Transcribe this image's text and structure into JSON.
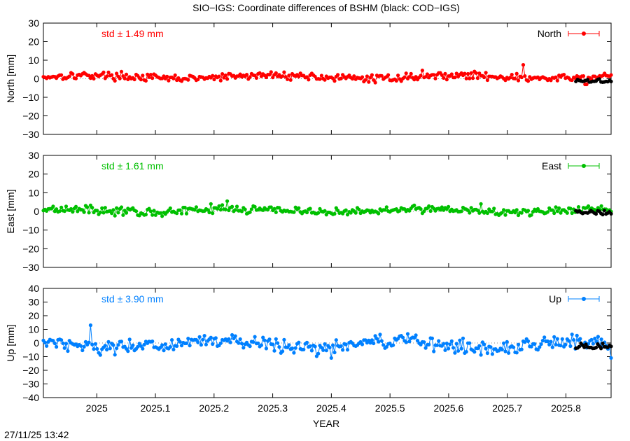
{
  "title": "SIO−IGS: Coordinate differences of BSHM (black: COD−IGS)",
  "timestamp": "27/11/25 13:42",
  "chart_data": {
    "type": "line",
    "xlabel": "YEAR",
    "xlim": [
      2024.909,
      2025.877
    ],
    "x_ticks": [
      {
        "value": 2025.0,
        "label": "2025"
      },
      {
        "value": 2025.1,
        "label": "2025.1"
      },
      {
        "value": 2025.2,
        "label": "2025.2"
      },
      {
        "value": 2025.3,
        "label": "2025.3"
      },
      {
        "value": 2025.4,
        "label": "2025.4"
      },
      {
        "value": 2025.5,
        "label": "2025.5"
      },
      {
        "value": 2025.6,
        "label": "2025.6"
      },
      {
        "value": 2025.7,
        "label": "2025.7"
      },
      {
        "value": 2025.8,
        "label": "2025.8"
      }
    ],
    "comparison_series": {
      "name": "COD−IGS",
      "color": "#000000",
      "x_range": [
        2025.817,
        2025.877
      ]
    },
    "panels": [
      {
        "key": "north",
        "ylabel": "North [mm]",
        "legend": "North",
        "std_label": "std ± 1.49 mm",
        "color": "#ff0000",
        "ylim": [
          -30,
          30
        ],
        "y_ticks": [
          {
            "value": 30,
            "label": "30"
          },
          {
            "value": 20,
            "label": "20"
          },
          {
            "value": 10,
            "label": "10"
          },
          {
            "value": 0,
            "label": "0"
          },
          {
            "value": -10,
            "label": "−10"
          },
          {
            "value": -20,
            "label": "−20"
          },
          {
            "value": -30,
            "label": "−30"
          }
        ],
        "std": 1.49,
        "mean": 1.0,
        "spikes": [
          {
            "x": 2025.728,
            "y": 7.5
          },
          {
            "x": 2025.555,
            "y": 4.5
          },
          {
            "x": 2025.834,
            "y": -3.0
          }
        ],
        "comparison_offset": -1.2
      },
      {
        "key": "east",
        "ylabel": "East [mm]",
        "legend": "East",
        "std_label": "std ± 1.61 mm",
        "color": "#00c000",
        "ylim": [
          -30,
          30
        ],
        "y_ticks": [
          {
            "value": 30,
            "label": "30"
          },
          {
            "value": 20,
            "label": "20"
          },
          {
            "value": 10,
            "label": "10"
          },
          {
            "value": 0,
            "label": "0"
          },
          {
            "value": -10,
            "label": "−10"
          },
          {
            "value": -20,
            "label": "−20"
          },
          {
            "value": -30,
            "label": "−30"
          }
        ],
        "std": 1.61,
        "mean": 0.5,
        "spikes": [
          {
            "x": 2025.222,
            "y": 5.5
          },
          {
            "x": 2025.195,
            "y": 4.0
          },
          {
            "x": 2025.654,
            "y": 4.0
          }
        ],
        "comparison_offset": -0.5
      },
      {
        "key": "up",
        "ylabel": "Up [mm]",
        "legend": "Up",
        "std_label": "std ± 3.90 mm",
        "color": "#0080ff",
        "ylim": [
          -40,
          40
        ],
        "y_ticks": [
          {
            "value": 40,
            "label": "40"
          },
          {
            "value": 30,
            "label": "30"
          },
          {
            "value": 20,
            "label": "20"
          },
          {
            "value": 10,
            "label": "10"
          },
          {
            "value": 0,
            "label": "0"
          },
          {
            "value": -10,
            "label": "−10"
          },
          {
            "value": -20,
            "label": "−20"
          },
          {
            "value": -30,
            "label": "−30"
          },
          {
            "value": -40,
            "label": "−40"
          }
        ],
        "std": 3.9,
        "mean": -1.0,
        "spikes": [
          {
            "x": 2024.99,
            "y": 13.0
          },
          {
            "x": 2025.877,
            "y": -11.0
          },
          {
            "x": 2025.4,
            "y": -11.0
          }
        ],
        "comparison_offset": -2.5
      }
    ]
  }
}
